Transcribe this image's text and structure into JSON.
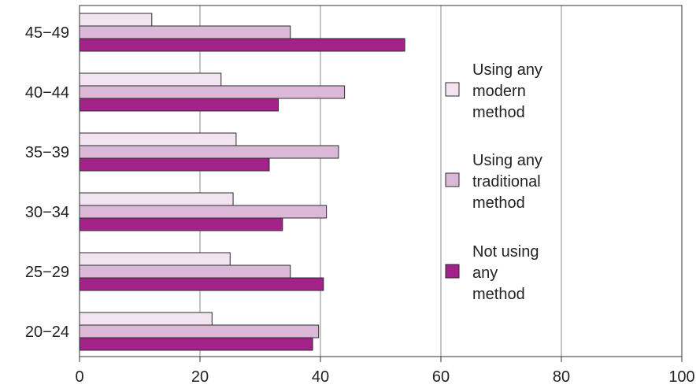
{
  "chart_data": {
    "type": "bar",
    "orientation": "horizontal",
    "categories": [
      "45−49",
      "40−44",
      "35−39",
      "30−34",
      "25−29",
      "20−24"
    ],
    "series": [
      {
        "name": "Using any modern method",
        "legend_lines": [
          "Using any",
          "modern",
          "method"
        ],
        "color": "#f2e4f0",
        "values": [
          12,
          23.5,
          26,
          25.5,
          25,
          22
        ]
      },
      {
        "name": "Using any traditional method",
        "legend_lines": [
          "Using any",
          "traditional",
          "method"
        ],
        "color": "#dcb8d8",
        "values": [
          35,
          44,
          43,
          41,
          35,
          39.7
        ]
      },
      {
        "name": "Not using any method",
        "legend_lines": [
          "Not using",
          "any",
          "method"
        ],
        "color": "#a3228a",
        "values": [
          54,
          33,
          31.5,
          33.7,
          40.5,
          38.7
        ]
      }
    ],
    "xlim": [
      0,
      100
    ],
    "xticks": [
      0,
      20,
      40,
      60,
      80,
      100
    ],
    "xtick_labels": [
      "0",
      "20",
      "40",
      "60",
      "80",
      "100"
    ],
    "title": "",
    "xlabel": "",
    "ylabel": "",
    "grid": "vertical",
    "legend_position": "right"
  }
}
